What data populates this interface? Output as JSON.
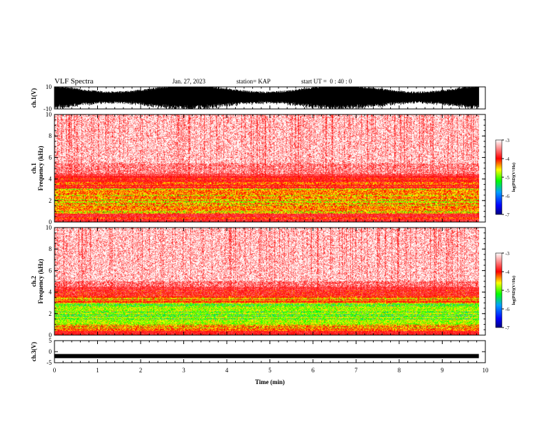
{
  "header": {
    "title": "VLF Spectra",
    "date": "Jan. 27, 2023",
    "station": "station= KAP",
    "start": "start UT =  0 : 40 : 0"
  },
  "chart_data": [
    {
      "type": "line",
      "panel": "ch1-waveform",
      "ylabel": "ch.1(V)",
      "ylim": [
        -10,
        10
      ],
      "yticks": [
        "10",
        "-10"
      ],
      "x_range_min": [
        0,
        9.85
      ],
      "note_values": "dense waveform spanning roughly -10 to 10 V"
    },
    {
      "type": "heatmap",
      "panel": "ch1-spectrogram",
      "ylabel": "ch.1 Frequency (kHz)",
      "ylim": [
        0,
        10
      ],
      "yticks": [
        "0",
        "2",
        "4",
        "6",
        "8",
        "10"
      ],
      "x_range_min": [
        0,
        9.85
      ],
      "bands": [
        {
          "from_khz": 0.0,
          "to_khz": 0.8,
          "level": -3.5
        },
        {
          "from_khz": 0.8,
          "to_khz": 3.2,
          "level": -4.3
        },
        {
          "from_khz": 3.2,
          "to_khz": 4.3,
          "level": -3.6
        },
        {
          "from_khz": 4.3,
          "to_khz": 5.5,
          "level": -3.3
        },
        {
          "from_khz": 5.5,
          "to_khz": 10.0,
          "level": -3.0
        }
      ],
      "colorbar": {
        "label": "log(PSD)(V²/Hz)",
        "min": -7,
        "max": -3,
        "ticks": [
          "-3",
          "-4",
          "-5",
          "-6",
          "-7"
        ]
      }
    },
    {
      "type": "heatmap",
      "panel": "ch2-spectrogram",
      "ylabel": "ch.2 Frequency (kHz)",
      "ylim": [
        0,
        10
      ],
      "yticks": [
        "0",
        "2",
        "4",
        "6",
        "8",
        "10"
      ],
      "x_range_min": [
        0,
        9.85
      ],
      "bands": [
        {
          "from_khz": 0.0,
          "to_khz": 0.4,
          "level": -3.6
        },
        {
          "from_khz": 0.4,
          "to_khz": 1.0,
          "level": -4.2
        },
        {
          "from_khz": 1.0,
          "to_khz": 3.0,
          "level": -4.8
        },
        {
          "from_khz": 3.0,
          "to_khz": 3.6,
          "level": -4.0
        },
        {
          "from_khz": 3.6,
          "to_khz": 5.0,
          "level": -3.4
        },
        {
          "from_khz": 5.0,
          "to_khz": 10.0,
          "level": -3.0
        }
      ],
      "colorbar": {
        "label": "log(PSD)(V²/Hz)",
        "min": -7,
        "max": -3,
        "ticks": [
          "-3",
          "-4",
          "-5",
          "-6",
          "-7"
        ]
      }
    },
    {
      "type": "line",
      "panel": "ch3-waveform",
      "ylabel": "ch.3(V)",
      "ylim": [
        -5,
        5
      ],
      "yticks": [
        "5",
        "0",
        "-5"
      ],
      "x_range_min": [
        0,
        9.85
      ],
      "note_values": "nearly constant signal near -2 V"
    }
  ],
  "xaxis": {
    "label": "Time (min)",
    "ticks": [
      "0",
      "1",
      "2",
      "3",
      "4",
      "5",
      "6",
      "7",
      "8",
      "9",
      "10"
    ],
    "xlim": [
      0,
      10
    ]
  },
  "colors": {
    "red": "#ff0000",
    "yellow": "#ffff00",
    "green": "#00ff00"
  }
}
